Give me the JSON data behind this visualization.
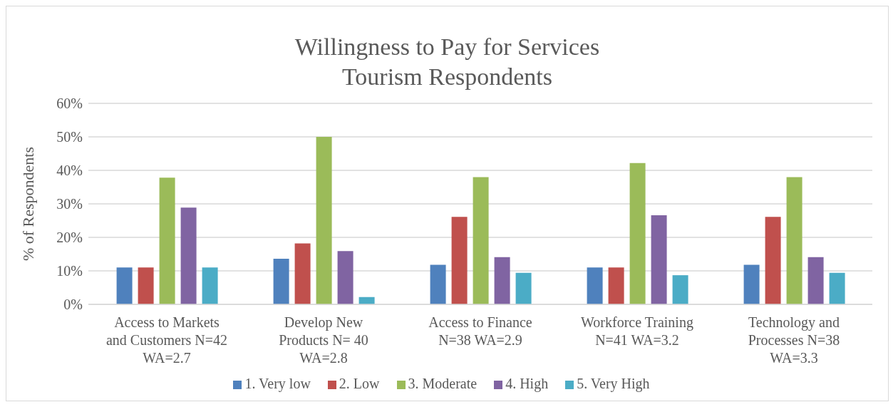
{
  "chart_data": {
    "type": "bar",
    "title": "Willingness to Pay for Services",
    "subtitle": "Tourism Respondents",
    "ylabel": "% of Respondents",
    "categories": [
      "Access to Markets and Customers  N=42 WA=2.7",
      "Develop New Products N= 40 WA=2.8",
      "Access to Finance N=38 WA=2.9",
      "Workforce Training N=41 WA=3.2",
      "Technology and Processes N=38 WA=3.3"
    ],
    "series": [
      {
        "name": "1. Very low",
        "color": "#4f81bd",
        "values": [
          11.0,
          13.6,
          11.8,
          11.0,
          11.8
        ]
      },
      {
        "name": "2. Low",
        "color": "#c0504d",
        "values": [
          11.0,
          18.2,
          26.1,
          11.0,
          26.1
        ]
      },
      {
        "name": "3. Moderate",
        "color": "#9bbb59",
        "values": [
          37.8,
          50.0,
          38.0,
          42.2,
          38.0
        ]
      },
      {
        "name": "4. High",
        "color": "#8064a2",
        "values": [
          28.9,
          15.9,
          14.1,
          26.6,
          14.1
        ]
      },
      {
        "name": "5. Very High",
        "color": "#4bacc6",
        "values": [
          11.0,
          2.2,
          9.4,
          8.7,
          9.4
        ]
      }
    ],
    "ylim": [
      0,
      60
    ],
    "yticks": [
      {
        "value": 0,
        "label": "0%"
      },
      {
        "value": 10,
        "label": "10%"
      },
      {
        "value": 20,
        "label": "20%"
      },
      {
        "value": 30,
        "label": "30%"
      },
      {
        "value": 40,
        "label": "40%"
      },
      {
        "value": 50,
        "label": "50%"
      },
      {
        "value": 60,
        "label": "60%"
      }
    ],
    "grid": "y",
    "legend": "bottom"
  }
}
